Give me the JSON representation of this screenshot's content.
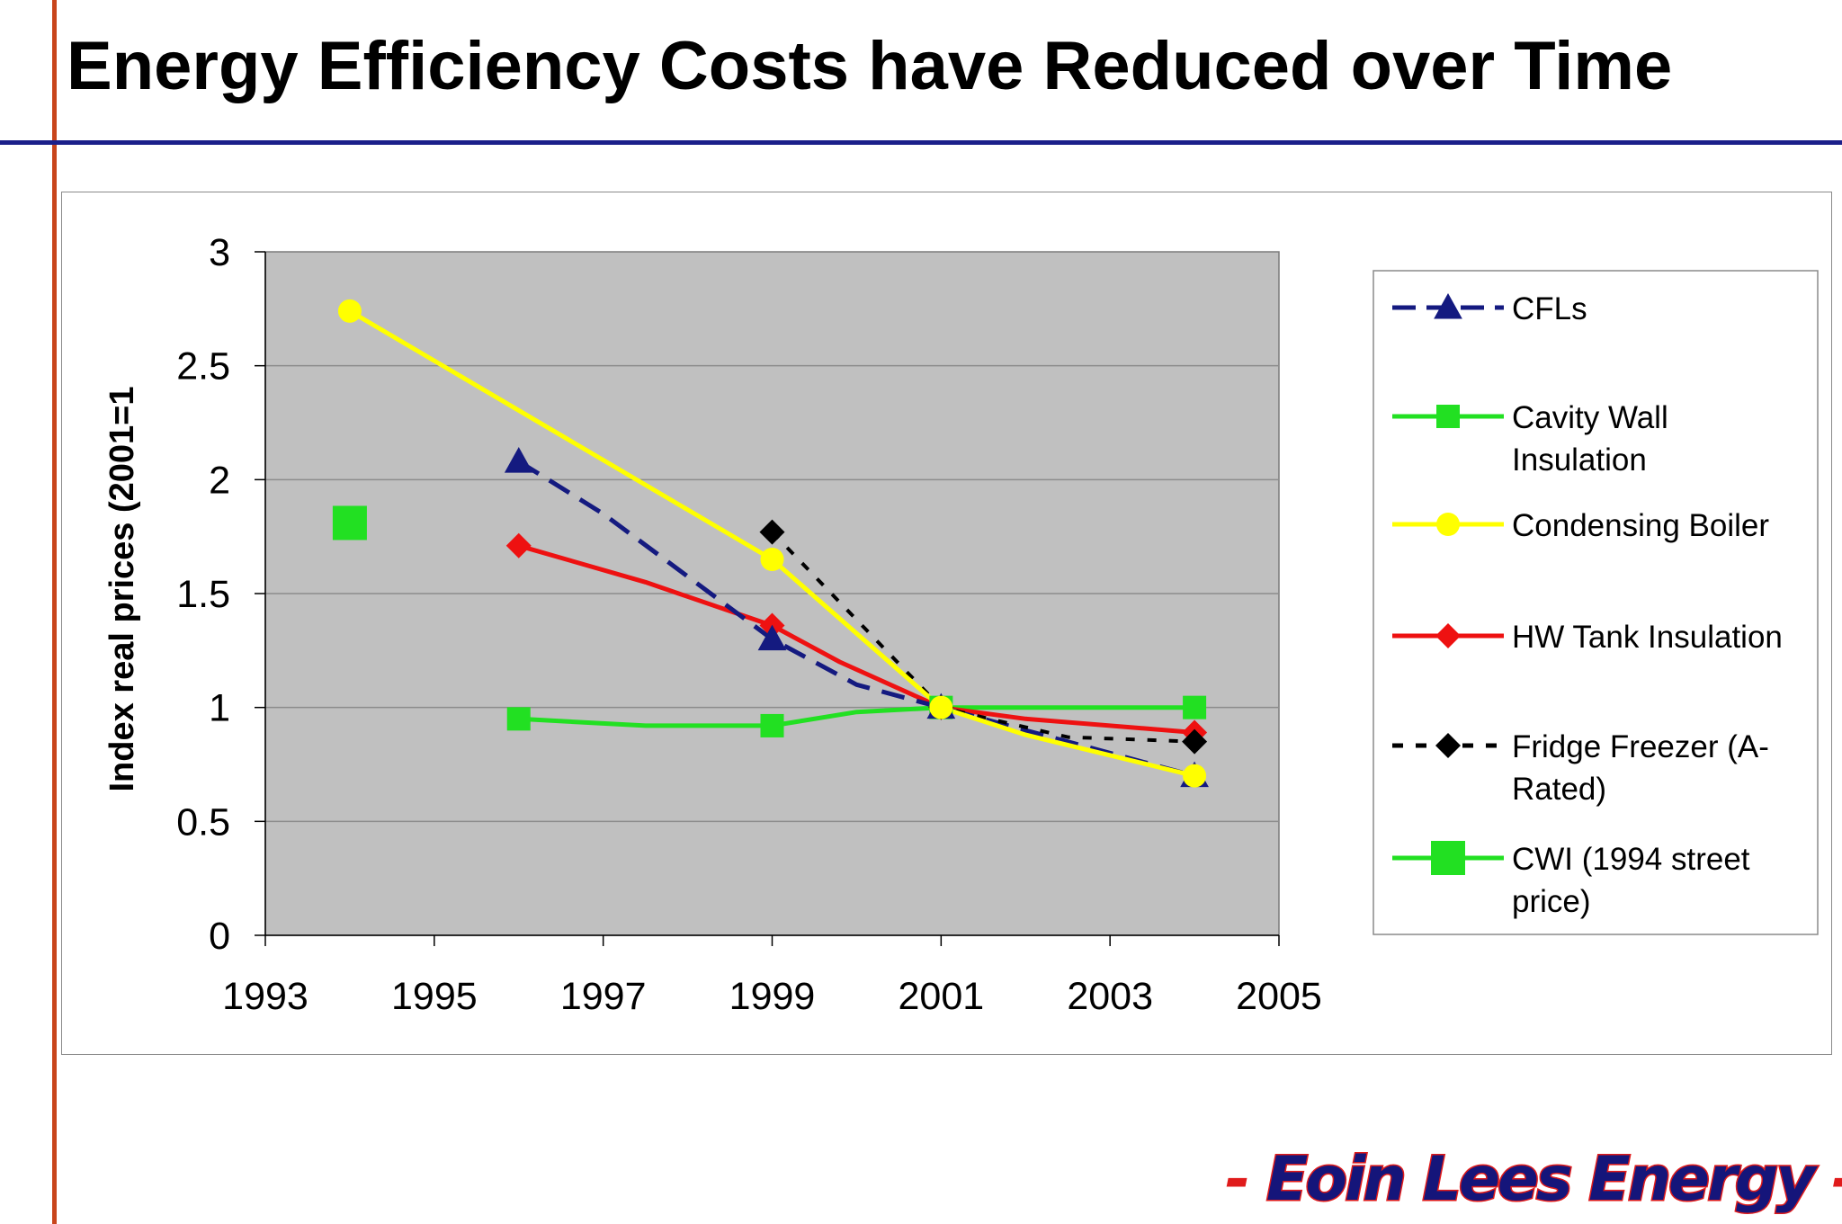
{
  "slide": {
    "title": "Energy Efficiency Costs have Reduced over Time",
    "brand_dash_left": "-",
    "brand_name": "Eoin Lees Energy",
    "brand_dash_right": "-"
  },
  "colors": {
    "title_rule": "#1b1f8a",
    "side_rule": "#c8451c",
    "plot_background": "#c0c0c0",
    "gridline": "#8c8c8c",
    "brand_text": "#15157a",
    "brand_outline": "#e01b1b"
  },
  "chart_data": {
    "type": "line",
    "title": "",
    "xlabel": "",
    "ylabel": "Index real prices (2001=1",
    "xlim": [
      1993,
      2005
    ],
    "ylim": [
      0,
      3
    ],
    "x_ticks": [
      "1993",
      "1995",
      "1997",
      "1999",
      "2001",
      "2003",
      "2005"
    ],
    "y_ticks": [
      "0",
      "0.5",
      "1",
      "1.5",
      "2",
      "2.5",
      "3"
    ],
    "grid": "horizontal",
    "legend_position": "right",
    "series": [
      {
        "name": "CFLs",
        "color": "#141a80",
        "line_style": "dashed",
        "marker": "triangle",
        "points": [
          [
            1996,
            2.08
          ],
          [
            1997,
            1.85
          ],
          [
            1999,
            1.3
          ],
          [
            2000,
            1.1
          ],
          [
            2001,
            1.0
          ],
          [
            2004,
            0.7
          ]
        ]
      },
      {
        "name": "Cavity Wall Insulation",
        "color": "#22e022",
        "line_style": "solid",
        "marker": "square",
        "points": [
          [
            1996,
            0.95
          ],
          [
            1997.5,
            0.92
          ],
          [
            1999,
            0.92
          ],
          [
            2000,
            0.98
          ],
          [
            2001,
            1.0
          ],
          [
            2004,
            1.0
          ]
        ]
      },
      {
        "name": "Condensing Boiler",
        "color": "#ffff00",
        "line_style": "solid",
        "marker": "circle",
        "points": [
          [
            1994,
            2.74
          ],
          [
            1999,
            1.65
          ],
          [
            2001,
            1.0
          ],
          [
            2002,
            0.88
          ],
          [
            2004,
            0.7
          ]
        ]
      },
      {
        "name": "HW Tank Insulation",
        "color": "#ee1111",
        "line_style": "solid",
        "marker": "diamond",
        "points": [
          [
            1996,
            1.71
          ],
          [
            1997.5,
            1.55
          ],
          [
            1999,
            1.36
          ],
          [
            1999.8,
            1.2
          ],
          [
            2001,
            1.0
          ],
          [
            2002,
            0.95
          ],
          [
            2004,
            0.89
          ]
        ]
      },
      {
        "name": "Fridge Freezer (A-Rated)",
        "color": "#000000",
        "line_style": "dotted",
        "marker": "diamond",
        "points": [
          [
            1999,
            1.77
          ],
          [
            2001,
            1.0
          ],
          [
            2002.5,
            0.87
          ],
          [
            2004,
            0.85
          ]
        ]
      },
      {
        "name": "CWI (1994 street price)",
        "color": "#22e022",
        "line_style": "solid",
        "marker": "large-square",
        "points": [
          [
            1994,
            1.81
          ]
        ]
      }
    ],
    "legend": [
      {
        "label": "CFLs"
      },
      {
        "label": "Cavity Wall Insulation"
      },
      {
        "label": "Condensing Boiler"
      },
      {
        "label": "HW Tank Insulation"
      },
      {
        "label": "Fridge Freezer (A-Rated)"
      },
      {
        "label": "CWI (1994 street price)"
      }
    ]
  }
}
